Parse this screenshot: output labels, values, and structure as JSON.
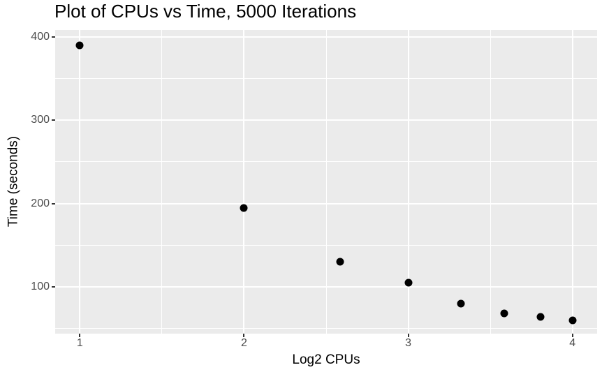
{
  "window": {
    "background": "#FFFFFF"
  },
  "chart_data": {
    "type": "scatter",
    "title": "Plot of CPUs vs Time, 5000 Iterations",
    "xlabel": "Log2 CPUs",
    "ylabel": "Time (seconds)",
    "points": [
      {
        "x": 1.0,
        "y": 390
      },
      {
        "x": 2.0,
        "y": 195
      },
      {
        "x": 2.585,
        "y": 130
      },
      {
        "x": 3.0,
        "y": 105
      },
      {
        "x": 3.322,
        "y": 80
      },
      {
        "x": 3.585,
        "y": 68
      },
      {
        "x": 3.807,
        "y": 64
      },
      {
        "x": 4.0,
        "y": 60
      }
    ],
    "x_tick_labels": [
      "1",
      "2",
      "3",
      "4"
    ],
    "x_ticks": [
      1,
      2,
      3,
      4
    ],
    "y_tick_labels": [
      "100",
      "200",
      "300",
      "400"
    ],
    "y_ticks": [
      100,
      200,
      300,
      400
    ],
    "x_minor_ticks": [
      1.5,
      2.5,
      3.5
    ],
    "y_minor_ticks": [
      50,
      150,
      250,
      350
    ],
    "xlim": [
      0.85,
      4.15
    ],
    "ylim": [
      44,
      408
    ],
    "legend": "none",
    "grid": "on",
    "style": {
      "panel_bg": "#EBEBEB",
      "grid_color": "#FFFFFF",
      "point_color": "#000000",
      "tick_label_color": "#4D4D4D",
      "tick_mark_color": "#333333",
      "text_color": "#000000"
    }
  }
}
